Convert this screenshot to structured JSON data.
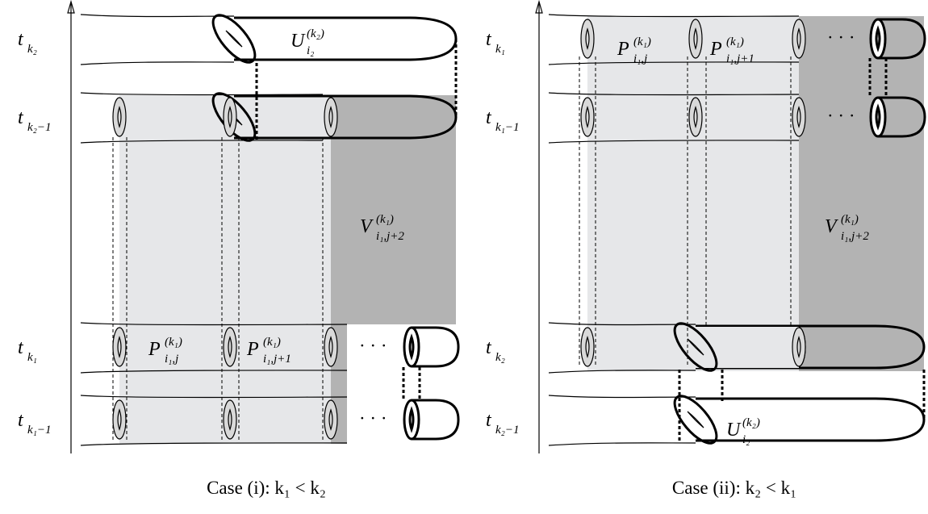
{
  "panels": [
    {
      "axis_labels": [
        {
          "main": "t",
          "sub": "k₂"
        },
        {
          "main": "t",
          "sub": "k₂−1"
        },
        {
          "main": "t",
          "sub": "k₁"
        },
        {
          "main": "t",
          "sub": "k₁−1"
        }
      ],
      "region_labels": [
        {
          "main": "U",
          "sup": "(k₂)",
          "sub": "i₂"
        },
        {
          "main": "V",
          "sup": "(k₁)",
          "sub": "i₁,j+2"
        },
        {
          "main": "P",
          "sup": "(k₁)",
          "sub": "i₁,j"
        },
        {
          "main": "P",
          "sup": "(k₁)",
          "sub": "i₁,j+1"
        }
      ],
      "ellipses": [
        "· · ·",
        "· · ·"
      ],
      "caption": "Case (i):  k₁ < k₂"
    },
    {
      "axis_labels": [
        {
          "main": "t",
          "sub": "k₁"
        },
        {
          "main": "t",
          "sub": "k₁−1"
        },
        {
          "main": "t",
          "sub": "k₂"
        },
        {
          "main": "t",
          "sub": "k₂−1"
        }
      ],
      "region_labels": [
        {
          "main": "P",
          "sup": "(k₁)",
          "sub": "i₁,j"
        },
        {
          "main": "P",
          "sup": "(k₁)",
          "sub": "i₁,j+1"
        },
        {
          "main": "V",
          "sup": "(k₁)",
          "sub": "i₁,j+2"
        },
        {
          "main": "U",
          "sup": "(k₂)",
          "sub": "i₂"
        }
      ],
      "ellipses": [
        "· · ·",
        "· · ·"
      ],
      "caption": "Case (ii):  k₂ < k₁"
    }
  ]
}
